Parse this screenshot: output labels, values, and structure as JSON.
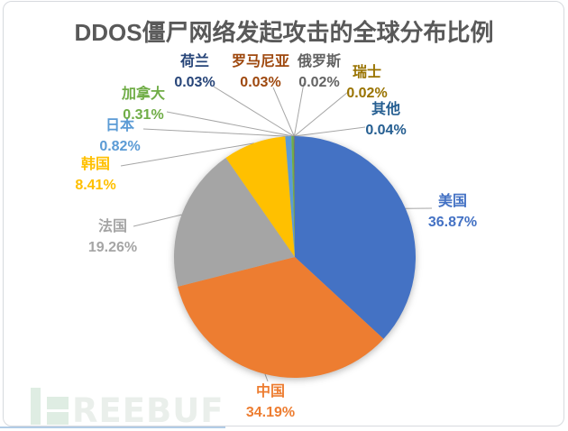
{
  "window": {
    "background": "#ffffff",
    "border_color": "#D7DADE"
  },
  "chart_data": {
    "type": "pie",
    "title": "DDOS僵尸网络发起攻击的全球分布比例",
    "title_color": "#595959",
    "legend_position": "none",
    "start_angle_deg": 0,
    "direction": "clockwise",
    "grid": false,
    "leader_line_color": "#A6A6A6",
    "slices": [
      {
        "label": "美国",
        "value": 36.87,
        "display": "36.87%",
        "color": "#4472C4"
      },
      {
        "label": "中国",
        "value": 34.19,
        "display": "34.19%",
        "color": "#ED7D31"
      },
      {
        "label": "法国",
        "value": 19.26,
        "display": "19.26%",
        "color": "#A5A5A5"
      },
      {
        "label": "韩国",
        "value": 8.41,
        "display": "8.41%",
        "color": "#FFC000"
      },
      {
        "label": "日本",
        "value": 0.82,
        "display": "0.82%",
        "color": "#5B9BD5"
      },
      {
        "label": "加拿大",
        "value": 0.31,
        "display": "0.31%",
        "color": "#70AD47"
      },
      {
        "label": "荷兰",
        "value": 0.03,
        "display": "0.03%",
        "color": "#264478"
      },
      {
        "label": "罗马尼亚",
        "value": 0.03,
        "display": "0.03%",
        "color": "#9E480E"
      },
      {
        "label": "俄罗斯",
        "value": 0.02,
        "display": "0.02%",
        "color": "#636363"
      },
      {
        "label": "瑞士",
        "value": 0.02,
        "display": "0.02%",
        "color": "#997300"
      },
      {
        "label": "其他",
        "value": 0.04,
        "display": "0.04%",
        "color": "#255E91"
      }
    ]
  },
  "watermark": {
    "brand": "FREEBUF",
    "text": "REEBUF",
    "icon_color": "#DFEDE3",
    "text_color": "#EAEFEB",
    "underline_color": "#9FBFE0"
  }
}
